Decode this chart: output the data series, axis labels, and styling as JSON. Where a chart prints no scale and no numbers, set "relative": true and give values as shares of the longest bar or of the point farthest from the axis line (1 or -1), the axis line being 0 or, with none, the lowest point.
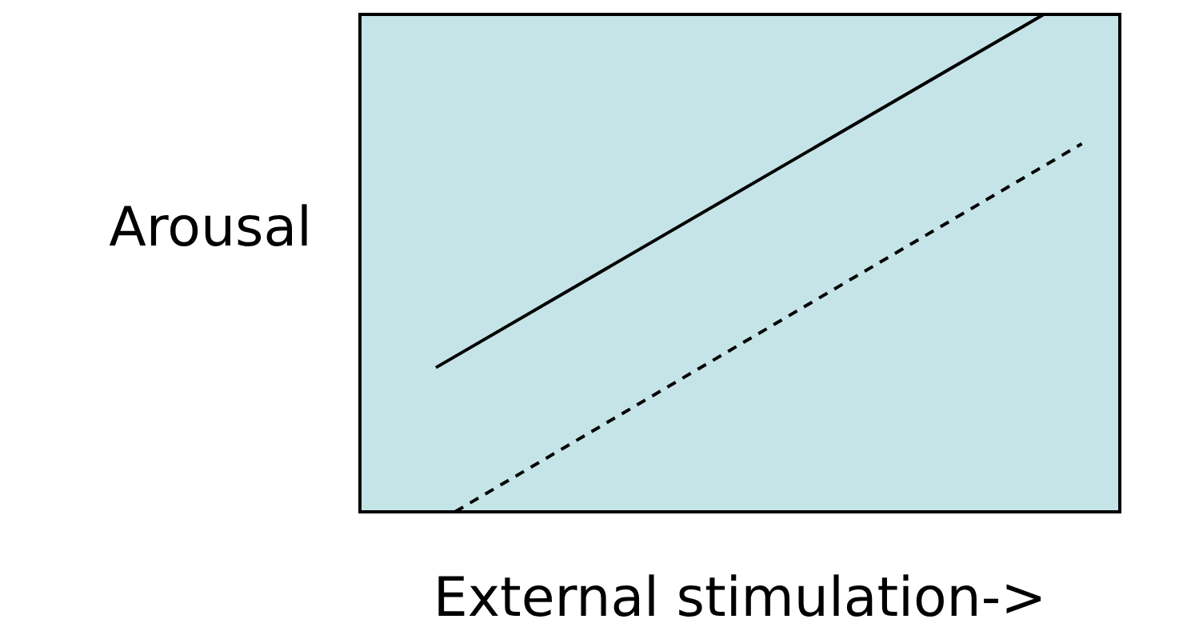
{
  "chart_data": {
    "type": "line",
    "xlabel": "External stimulation->",
    "ylabel": "Arousal",
    "relative": true,
    "marker": "none",
    "categories": [
      null,
      null,
      null,
      null,
      null,
      null,
      null,
      null,
      null,
      null,
      null,
      null,
      null,
      null,
      null,
      null,
      null,
      null,
      null,
      null,
      null,
      null,
      null,
      null,
      null,
      null,
      null,
      null,
      null,
      null,
      null,
      null,
      null,
      null,
      null,
      null,
      null,
      null,
      null,
      null,
      null
    ],
    "series": [
      {
        "color": "#000000",
        "line_style": "solid",
        "values": [
          null,
          null,
          null,
          null,
          0.29,
          null,
          null,
          null,
          null,
          null,
          null,
          null,
          null,
          null,
          null,
          null,
          null,
          null,
          null,
          null,
          null,
          null,
          null,
          null,
          null,
          null,
          null,
          null,
          null,
          null,
          null,
          null,
          null,
          null,
          null,
          null,
          1,
          null,
          null,
          null,
          null
        ]
      },
      {
        "color": "#000000",
        "line_style": "dashed",
        "values": [
          null,
          null,
          null,
          null,
          null,
          0,
          null,
          null,
          null,
          null,
          null,
          null,
          null,
          null,
          null,
          null,
          null,
          null,
          null,
          null,
          null,
          null,
          null,
          null,
          null,
          null,
          null,
          null,
          null,
          null,
          null,
          null,
          null,
          null,
          null,
          null,
          null,
          null,
          0.74,
          null,
          null
        ]
      }
    ]
  }
}
